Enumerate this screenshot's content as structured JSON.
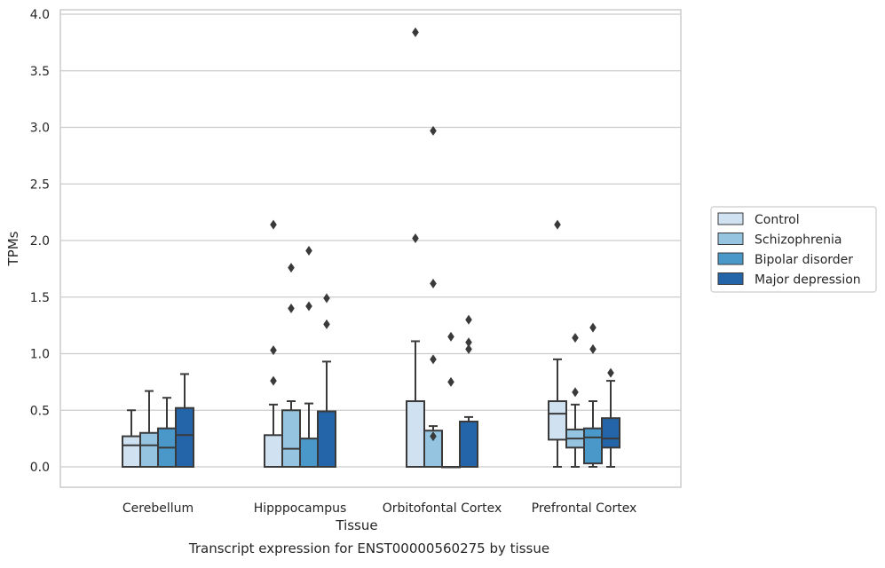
{
  "chart_data": {
    "type": "box",
    "title": "Transcript expression for ENST00000560275 by tissue",
    "xlabel": "Tissue",
    "ylabel": "TPMs",
    "ylim": [
      -0.18,
      4.05
    ],
    "yticks": [
      0.0,
      0.5,
      1.0,
      1.5,
      2.0,
      2.5,
      3.0,
      3.5,
      4.0
    ],
    "ytick_labels": [
      "0.0",
      "0.5",
      "1.0",
      "1.5",
      "2.0",
      "2.5",
      "3.0",
      "3.5",
      "4.0"
    ],
    "grid": "horizontal",
    "legend_position": "right",
    "categories": [
      "Cerebellum",
      "Hipppocampus",
      "Orbitofontal Cortex",
      "Prefrontal Cortex"
    ],
    "series": [
      {
        "name": "Control",
        "color": "#d0e1f2",
        "boxes": [
          {
            "whislo": 0.0,
            "q1": 0.0,
            "med": 0.19,
            "q3": 0.27,
            "whishi": 0.5,
            "fliers": []
          },
          {
            "whislo": 0.0,
            "q1": 0.0,
            "med": 0.0,
            "q3": 0.28,
            "whishi": 0.55,
            "fliers": [
              0.76,
              1.03,
              2.14
            ]
          },
          {
            "whislo": 0.0,
            "q1": 0.0,
            "med": 0.0,
            "q3": 0.58,
            "whishi": 1.11,
            "fliers": [
              2.02,
              3.84
            ]
          },
          {
            "whislo": 0.0,
            "q1": 0.24,
            "med": 0.47,
            "q3": 0.58,
            "whishi": 0.95,
            "fliers": [
              2.14
            ]
          }
        ]
      },
      {
        "name": "Schizophrenia",
        "color": "#94c4df",
        "boxes": [
          {
            "whislo": 0.0,
            "q1": 0.0,
            "med": 0.19,
            "q3": 0.3,
            "whishi": 0.67,
            "fliers": []
          },
          {
            "whislo": 0.0,
            "q1": 0.0,
            "med": 0.16,
            "q3": 0.5,
            "whishi": 0.58,
            "fliers": [
              1.4,
              1.76
            ]
          },
          {
            "whislo": 0.0,
            "q1": 0.0,
            "med": 0.0,
            "q3": 0.32,
            "whishi": 0.36,
            "fliers": [
              0.27,
              0.95,
              1.62,
              2.97
            ]
          },
          {
            "whislo": 0.0,
            "q1": 0.17,
            "med": 0.25,
            "q3": 0.33,
            "whishi": 0.55,
            "fliers": [
              0.66,
              1.14
            ]
          }
        ]
      },
      {
        "name": "Bipolar disorder",
        "color": "#4a98c9",
        "boxes": [
          {
            "whislo": 0.0,
            "q1": 0.0,
            "med": 0.17,
            "q3": 0.34,
            "whishi": 0.61,
            "fliers": []
          },
          {
            "whislo": 0.0,
            "q1": 0.0,
            "med": 0.0,
            "q3": 0.25,
            "whishi": 0.56,
            "fliers": [
              1.42,
              1.91
            ]
          },
          {
            "whislo": 0.0,
            "q1": 0.0,
            "med": 0.0,
            "q3": 0.0,
            "whishi": 0.0,
            "fliers": [
              0.75,
              1.15
            ]
          },
          {
            "whislo": 0.0,
            "q1": 0.03,
            "med": 0.26,
            "q3": 0.34,
            "whishi": 0.58,
            "fliers": [
              1.04,
              1.23
            ]
          }
        ]
      },
      {
        "name": "Major depression",
        "color": "#2464a8",
        "boxes": [
          {
            "whislo": 0.0,
            "q1": 0.0,
            "med": 0.28,
            "q3": 0.52,
            "whishi": 0.82,
            "fliers": []
          },
          {
            "whislo": 0.0,
            "q1": 0.0,
            "med": 0.0,
            "q3": 0.49,
            "whishi": 0.93,
            "fliers": [
              1.26,
              1.49
            ]
          },
          {
            "whislo": 0.0,
            "q1": 0.0,
            "med": 0.0,
            "q3": 0.4,
            "whishi": 0.44,
            "fliers": [
              1.04,
              1.1,
              1.3
            ]
          },
          {
            "whislo": 0.0,
            "q1": 0.17,
            "med": 0.25,
            "q3": 0.43,
            "whishi": 0.76,
            "fliers": [
              0.83
            ]
          }
        ]
      }
    ]
  }
}
